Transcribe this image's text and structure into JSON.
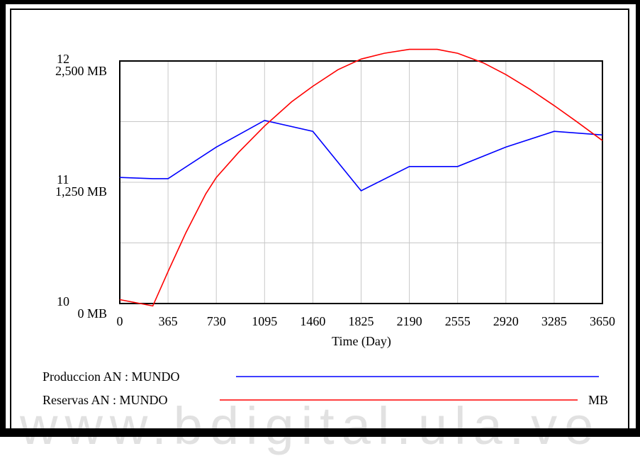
{
  "chart_data": {
    "type": "line",
    "xlabel": "Time (Day)",
    "x_ticks": [
      0,
      365,
      730,
      1095,
      1460,
      1825,
      2190,
      2555,
      2920,
      3285,
      3650
    ],
    "xlim": [
      0,
      3650
    ],
    "grid": true,
    "left_axes": [
      {
        "series": "Produccion AN : MUNDO",
        "ticks": [
          "12",
          "11",
          "10"
        ],
        "range": [
          10,
          12
        ]
      },
      {
        "series": "Reservas AN : MUNDO",
        "ticks": [
          "2,500  MB",
          "1,250  MB",
          "0  MB"
        ],
        "range": [
          0,
          2500
        ],
        "unit": "MB"
      }
    ],
    "series": [
      {
        "name": "Produccion AN : MUNDO",
        "color": "#0000ff",
        "x": [
          0,
          250,
          365,
          730,
          1095,
          1460,
          1825,
          2190,
          2555,
          2920,
          3285,
          3650
        ],
        "y": [
          11.04,
          11.03,
          11.03,
          11.29,
          11.51,
          11.42,
          10.93,
          11.13,
          11.13,
          11.29,
          11.42,
          11.39
        ]
      },
      {
        "name": "Reservas AN : MUNDO",
        "color": "#ff0000",
        "x": [
          0,
          250,
          365,
          500,
          650,
          730,
          900,
          1095,
          1300,
          1460,
          1650,
          1825,
          2000,
          2190,
          2400,
          2555,
          2750,
          2920,
          3100,
          3285,
          3450,
          3650
        ],
        "y": [
          40,
          -25,
          330,
          730,
          1130,
          1300,
          1560,
          1830,
          2080,
          2240,
          2410,
          2520,
          2580,
          2620,
          2620,
          2580,
          2480,
          2360,
          2210,
          2040,
          1880,
          1680
        ]
      }
    ]
  },
  "legend": {
    "items": [
      {
        "label": "Produccion AN : MUNDO",
        "unit": "",
        "color": "#0000ff"
      },
      {
        "label": "Reservas AN : MUNDO",
        "unit": "MB",
        "color": "#ff0000"
      }
    ]
  },
  "watermark": "www.bdigital.ula.ve"
}
